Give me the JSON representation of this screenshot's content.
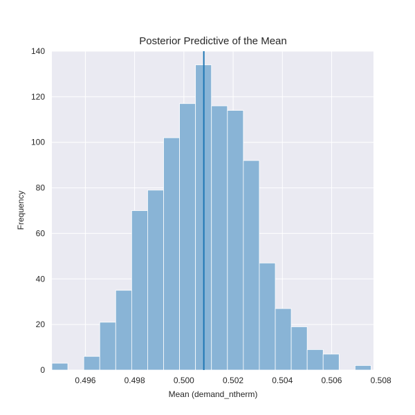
{
  "chart_data": {
    "type": "bar",
    "title": "Posterior Predictive of the Mean",
    "xlabel": "Mean (demand_ntherm)",
    "ylabel": "Frequency",
    "xlim": [
      0.49464,
      0.5077
    ],
    "ylim": [
      0,
      140
    ],
    "x_ticks": [
      "0.496",
      "0.498",
      "0.500",
      "0.502",
      "0.504",
      "0.506",
      "0.508"
    ],
    "x_tick_values": [
      0.496,
      0.498,
      0.5,
      0.502,
      0.504,
      0.506,
      0.508
    ],
    "y_ticks": [
      "0",
      "20",
      "40",
      "60",
      "80",
      "100",
      "120",
      "140"
    ],
    "y_tick_values": [
      0,
      20,
      40,
      60,
      80,
      100,
      120,
      140
    ],
    "bin_start": 0.49464,
    "bin_width": 0.000648,
    "values": [
      3,
      0,
      6,
      21,
      35,
      70,
      79,
      102,
      117,
      134,
      116,
      114,
      92,
      47,
      27,
      19,
      9,
      7,
      0,
      2
    ],
    "vline": 0.50081,
    "grid": true,
    "colors": {
      "background": "#eaeaf2",
      "bar": "#89b4d6",
      "vline": "#1f77b4",
      "grid": "#ffffff"
    }
  }
}
